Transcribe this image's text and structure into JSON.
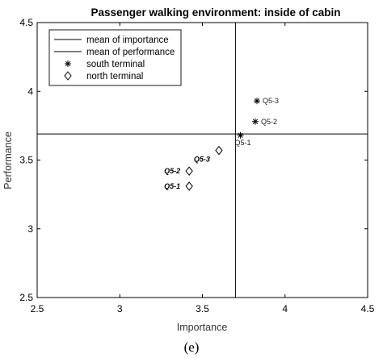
{
  "chart_data": {
    "type": "scatter",
    "title": "Passenger walking environment: inside of cabin",
    "xlabel": "Importance",
    "ylabel": "Performance",
    "xlim": [
      2.5,
      4.5
    ],
    "ylim": [
      2.5,
      4.5
    ],
    "xticks": [
      "2.5",
      "3",
      "3.5",
      "4",
      "4.5"
    ],
    "yticks": [
      "2.5",
      "3",
      "3.5",
      "4",
      "4.5"
    ],
    "grid": false,
    "legend_position": "top-left",
    "mean_of_importance": 3.7,
    "mean_of_performance": 3.69,
    "legend": [
      {
        "label": "mean of importance",
        "marker": "line"
      },
      {
        "label": "mean of performance",
        "marker": "line"
      },
      {
        "label": "south terminal",
        "marker": "asterisk"
      },
      {
        "label": "north terminal",
        "marker": "diamond"
      }
    ],
    "series": [
      {
        "name": "south terminal",
        "marker": "asterisk",
        "points": [
          {
            "x": 3.73,
            "y": 3.68,
            "label": "Q5-1"
          },
          {
            "x": 3.82,
            "y": 3.78,
            "label": "Q5-2"
          },
          {
            "x": 3.83,
            "y": 3.93,
            "label": "Q5-3"
          }
        ]
      },
      {
        "name": "north terminal",
        "marker": "diamond",
        "points": [
          {
            "x": 3.42,
            "y": 3.31,
            "label": "Q5-1"
          },
          {
            "x": 3.42,
            "y": 3.42,
            "label": "Q5-2"
          },
          {
            "x": 3.6,
            "y": 3.57,
            "label": "Q5-3"
          }
        ]
      }
    ]
  },
  "caption": "(e)"
}
